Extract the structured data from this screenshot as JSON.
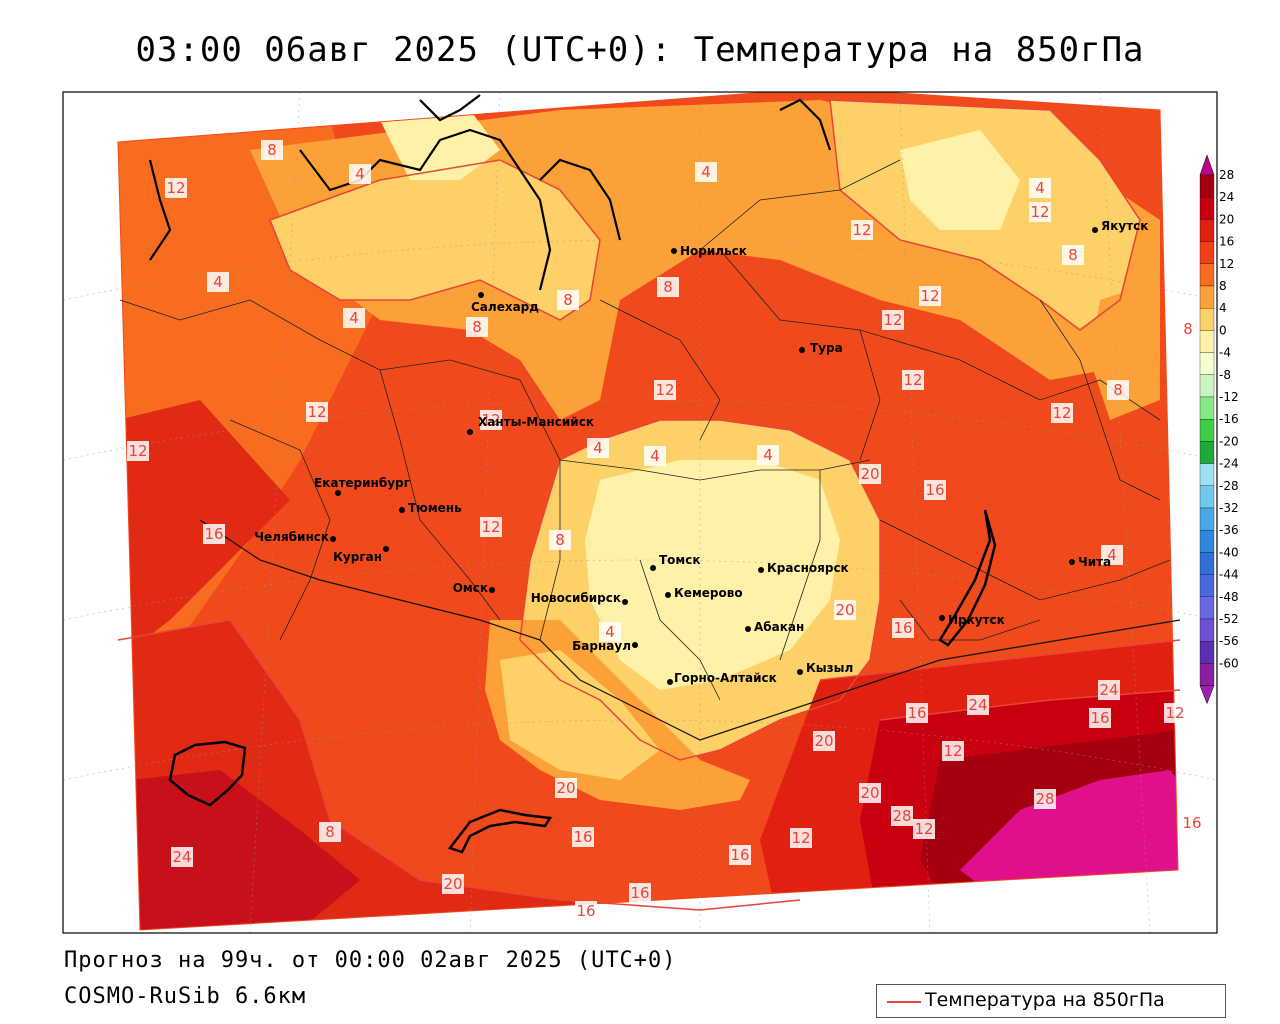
{
  "title": "03:00 06авг 2025 (UTC+0): Температура на 850гПа",
  "footer": {
    "forecast": "Прогноз на 99ч. от 00:00 02авг 2025 (UTC+0)",
    "model": "COSMO-RuSib 6.6км"
  },
  "legend": {
    "series_label": "Температура на 850гПа",
    "line_color": "#e8443a"
  },
  "colorbar": {
    "ticks": [
      "28",
      "24",
      "20",
      "16",
      "12",
      "8",
      "4",
      "0",
      "-4",
      "-8",
      "-12",
      "-16",
      "-20",
      "-24",
      "-28",
      "-32",
      "-36",
      "-40",
      "-44",
      "-48",
      "-52",
      "-56",
      "-60"
    ],
    "colors": [
      "#a50010",
      "#c80010",
      "#e02010",
      "#f04018",
      "#f86c20",
      "#fca038",
      "#fdd068",
      "#fff2a8",
      "#f4ffd0",
      "#c8f5c0",
      "#88e888",
      "#40cc48",
      "#20a838",
      "#9ee0f0",
      "#70c8ea",
      "#48a8e4",
      "#3088dc",
      "#3070d8",
      "#4868e0",
      "#6868e0",
      "#7050d0",
      "#5a30b0",
      "#8a20a0"
    ],
    "top_arrow_color": "#c0008a",
    "bottom_arrow_color": "#a020b0"
  },
  "cities": [
    {
      "name": "Салехард",
      "lon": 66.6,
      "lat": 66.5
    },
    {
      "name": "Норильск",
      "lon": 88.2,
      "lat": 69.3
    },
    {
      "name": "Якутск",
      "lon": 129.7,
      "lat": 62.0
    },
    {
      "name": "Тура",
      "lon": 100.2,
      "lat": 64.3
    },
    {
      "name": "Ханты-Мансийск",
      "lon": 69.0,
      "lat": 61.0
    },
    {
      "name": "Екатеринбург",
      "lon": 60.6,
      "lat": 56.8
    },
    {
      "name": "Тюмень",
      "lon": 65.5,
      "lat": 57.2
    },
    {
      "name": "Челябинск",
      "lon": 61.4,
      "lat": 55.2
    },
    {
      "name": "Курган",
      "lon": 65.3,
      "lat": 55.4
    },
    {
      "name": "Омск",
      "lon": 73.4,
      "lat": 55.0
    },
    {
      "name": "Томск",
      "lon": 85.0,
      "lat": 56.5
    },
    {
      "name": "Новосибирск",
      "lon": 82.9,
      "lat": 55.0
    },
    {
      "name": "Кемерово",
      "lon": 86.1,
      "lat": 55.4
    },
    {
      "name": "Красноярск",
      "lon": 92.9,
      "lat": 56.0
    },
    {
      "name": "Барнаул",
      "lon": 83.8,
      "lat": 53.3
    },
    {
      "name": "Абакан",
      "lon": 91.4,
      "lat": 53.7
    },
    {
      "name": "Иркутск",
      "lon": 104.3,
      "lat": 52.3
    },
    {
      "name": "Чита",
      "lon": 113.5,
      "lat": 52.0
    },
    {
      "name": "Кызыл",
      "lon": 94.4,
      "lat": 51.7
    },
    {
      "name": "Горно-Алтайск",
      "lon": 85.9,
      "lat": 51.96
    }
  ],
  "isotherm_labels": [
    "8",
    "4",
    "12",
    "4",
    "8",
    "4",
    "8",
    "4",
    "8",
    "12",
    "4",
    "12",
    "8",
    "12",
    "12",
    "8",
    "8",
    "12",
    "4",
    "12",
    "12",
    "4",
    "16",
    "8",
    "12",
    "12",
    "12",
    "12",
    "4",
    "4",
    "16",
    "4",
    "20",
    "20",
    "16",
    "16",
    "24",
    "24",
    "12",
    "16",
    "20",
    "20",
    "28",
    "28",
    "16",
    "12",
    "16",
    "12",
    "16",
    "16",
    "20",
    "16",
    "8",
    "20",
    "24",
    "12"
  ]
}
